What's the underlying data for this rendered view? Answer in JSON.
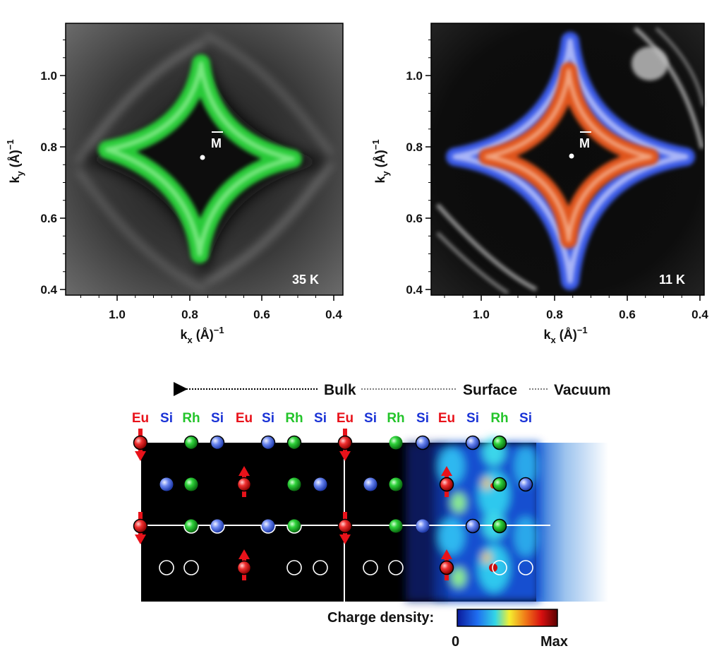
{
  "panels": [
    {
      "id": "left",
      "temperature": "35 K",
      "point_label": "M",
      "xlabel_main": "k",
      "xlabel_sub": "x",
      "xlabel_unit": " (Å)",
      "xlabel_sup": "−1",
      "ylabel_main": "k",
      "ylabel_sub": "y",
      "ylabel_unit": " (Å)",
      "ylabel_sup": "−1",
      "xticks": [
        "1.0",
        "0.8",
        "0.6",
        "0.4"
      ],
      "yticks": [
        "1.0",
        "0.8",
        "0.6",
        "0.4"
      ],
      "color": "#2bd43a"
    },
    {
      "id": "right",
      "temperature": "11 K",
      "point_label": "M",
      "xlabel_main": "k",
      "xlabel_sub": "x",
      "xlabel_unit": " (Å)",
      "xlabel_sup": "−1",
      "ylabel_main": "k",
      "ylabel_sub": "y",
      "ylabel_unit": " (Å)",
      "ylabel_sup": "−1",
      "xticks": [
        "1.0",
        "0.8",
        "0.6",
        "0.4"
      ],
      "yticks": [
        "1.0",
        "0.8",
        "0.6",
        "0.4"
      ],
      "outer_color": "#3a5ae6",
      "inner_color": "#e0541e"
    }
  ],
  "structure": {
    "bulk_label": "Bulk",
    "surface_label": "Surface",
    "vacuum_label": "Vacuum",
    "elements": [
      "Eu",
      "Si",
      "Rh",
      "Si",
      "Eu",
      "Si",
      "Rh",
      "Si",
      "Eu",
      "Si",
      "Rh",
      "Si",
      "Eu",
      "Si",
      "Rh",
      "Si"
    ],
    "element_colors": {
      "Eu": "#e8121a",
      "Si": "#1a33d6",
      "Rh": "#23c42a"
    }
  },
  "colorbar": {
    "label": "Charge density:",
    "min_label": "0",
    "max_label": "Max"
  }
}
